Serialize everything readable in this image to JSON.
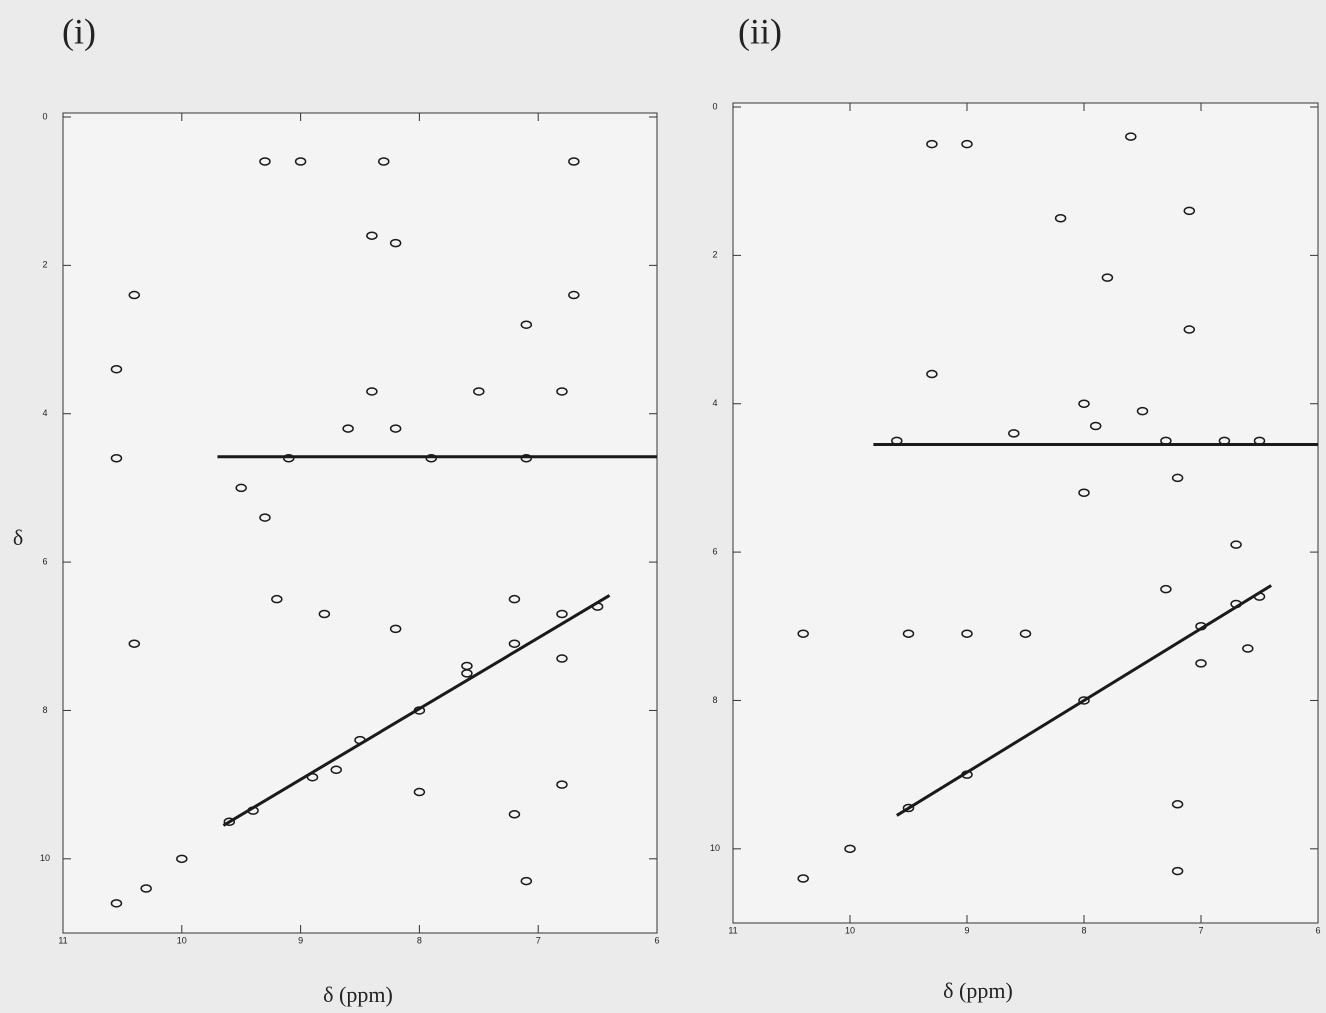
{
  "chart_data": [
    {
      "type": "contour",
      "label": "(i)",
      "xlabel": "δ (ppm)",
      "ylabel": "δ",
      "xlim": [
        11,
        6
      ],
      "ylim": [
        0,
        11
      ],
      "xticks": [
        11,
        10,
        9,
        8,
        7,
        6
      ],
      "yticks": [
        0,
        2,
        4,
        6,
        8,
        10
      ],
      "color": "#1a1a1a",
      "x": [
        10.55,
        10.3,
        10.0,
        9.6,
        9.4,
        8.9,
        8.5,
        8.0,
        7.6,
        7.2,
        6.8,
        6.5,
        10.55,
        10.55,
        10.4,
        10.4,
        9.3,
        9.0,
        8.4,
        8.3,
        8.2,
        7.1,
        6.7,
        6.7,
        9.1,
        8.6,
        8.4,
        8.2,
        7.9,
        7.5,
        7.1,
        6.8,
        9.2,
        8.8,
        8.2,
        7.6,
        7.2,
        6.8,
        8.7,
        8.0,
        7.2,
        6.8,
        7.1,
        9.5,
        9.3
      ],
      "y": [
        10.6,
        10.4,
        10.0,
        9.5,
        9.35,
        8.9,
        8.4,
        8.0,
        7.5,
        7.1,
        6.7,
        6.6,
        3.4,
        4.6,
        2.4,
        7.1,
        0.6,
        0.6,
        1.6,
        0.6,
        1.7,
        2.8,
        2.4,
        0.6,
        4.6,
        4.2,
        3.7,
        4.2,
        4.6,
        3.7,
        4.6,
        3.7,
        6.5,
        6.7,
        6.9,
        7.4,
        6.5,
        7.3,
        8.8,
        9.1,
        9.4,
        9.0,
        10.3,
        5.0,
        5.4
      ],
      "ridges": [
        {
          "x": [
            9.7,
            6.0
          ],
          "y": [
            4.58,
            4.58
          ]
        },
        {
          "x": [
            9.65,
            6.4
          ],
          "y": [
            9.55,
            6.45
          ]
        }
      ]
    },
    {
      "type": "contour",
      "label": "(ii)",
      "xlabel": "δ (ppm)",
      "xlim": [
        11,
        6
      ],
      "ylim": [
        0,
        11
      ],
      "xticks": [
        11,
        10,
        9,
        8,
        7,
        6
      ],
      "yticks": [
        0,
        2,
        4,
        6,
        8,
        10
      ],
      "color": "#1a1a1a",
      "x": [
        10.4,
        10.0,
        9.5,
        9.0,
        8.0,
        7.0,
        6.7,
        6.5,
        9.3,
        9.0,
        8.2,
        7.6,
        7.8,
        7.1,
        7.1,
        9.3,
        8.6,
        8.0,
        7.9,
        7.5,
        6.8,
        6.5,
        7.3,
        9.6,
        7.2,
        8.0,
        6.7,
        7.3,
        6.6,
        7.0,
        9.0,
        10.4,
        9.5,
        8.5,
        7.2,
        7.2
      ],
      "y": [
        10.4,
        10.0,
        9.45,
        9.0,
        8.0,
        7.0,
        6.7,
        6.6,
        0.5,
        0.5,
        1.5,
        0.4,
        2.3,
        3.0,
        1.4,
        3.6,
        4.4,
        4.0,
        4.3,
        4.1,
        4.5,
        4.5,
        4.5,
        4.5,
        5.0,
        5.2,
        5.9,
        6.5,
        7.3,
        7.5,
        7.1,
        7.1,
        7.1,
        7.1,
        9.4,
        10.3
      ],
      "ridges": [
        {
          "x": [
            9.8,
            6.0
          ],
          "y": [
            4.55,
            4.55
          ]
        },
        {
          "x": [
            9.6,
            6.4
          ],
          "y": [
            9.55,
            6.45
          ]
        }
      ]
    }
  ]
}
